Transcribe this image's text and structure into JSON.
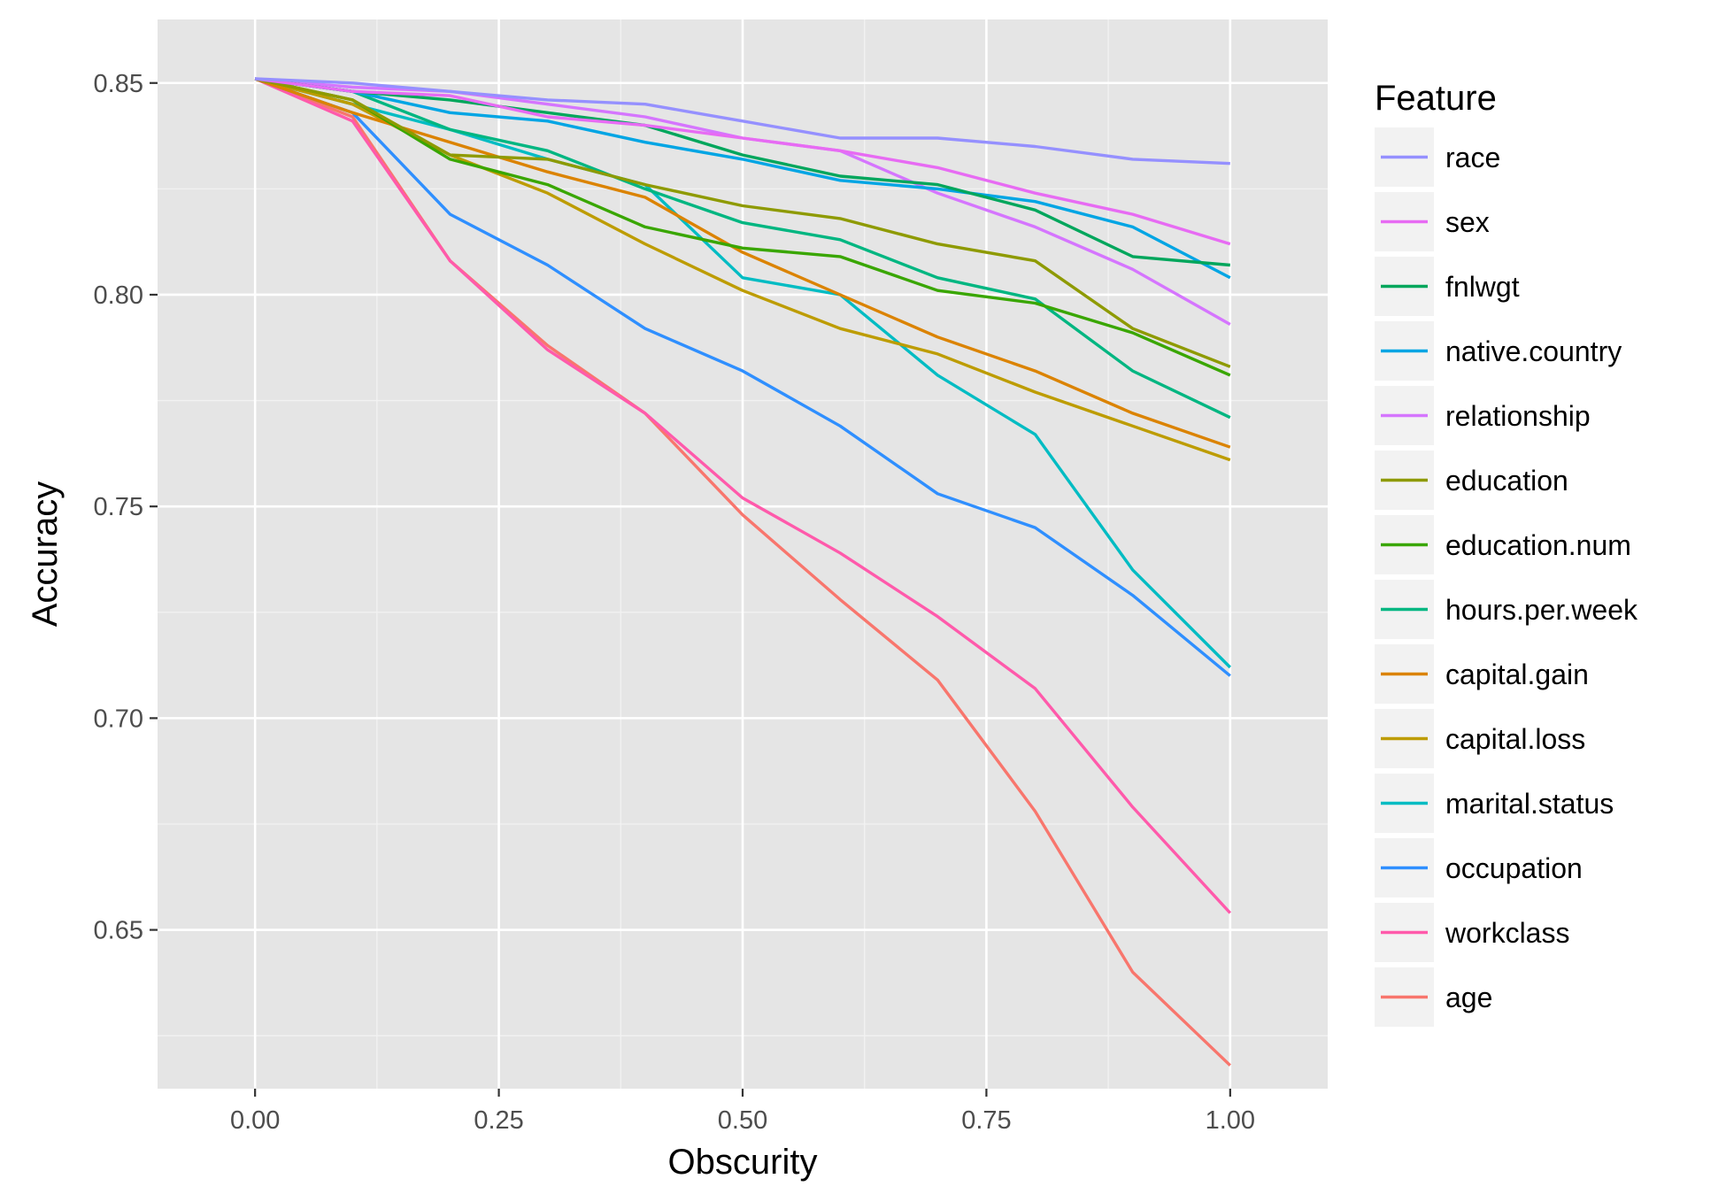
{
  "chart_data": {
    "type": "line",
    "xlabel": "Obscurity",
    "ylabel": "Accuracy",
    "xlim": [
      -0.1,
      1.1
    ],
    "ylim": [
      0.6125,
      0.865
    ],
    "x_ticks": [
      0.0,
      0.25,
      0.5,
      0.75,
      1.0
    ],
    "x_tick_labels": [
      "0.00",
      "0.25",
      "0.50",
      "0.75",
      "1.00"
    ],
    "y_ticks": [
      0.65,
      0.7,
      0.75,
      0.8,
      0.85
    ],
    "y_tick_labels": [
      "0.65",
      "0.70",
      "0.75",
      "0.80",
      "0.85"
    ],
    "grid": true,
    "legend_title": "Feature",
    "legend_position": "right",
    "x": [
      0.0,
      0.1,
      0.2,
      0.3,
      0.4,
      0.5,
      0.6,
      0.7,
      0.8,
      0.9,
      1.0
    ],
    "series": [
      {
        "name": "race",
        "color": "#9590FF",
        "values": [
          0.851,
          0.85,
          0.848,
          0.846,
          0.845,
          0.841,
          0.837,
          0.837,
          0.835,
          0.832,
          0.831
        ]
      },
      {
        "name": "sex",
        "color": "#E76BF3",
        "values": [
          0.851,
          0.848,
          0.847,
          0.842,
          0.84,
          0.837,
          0.834,
          0.83,
          0.824,
          0.819,
          0.812
        ]
      },
      {
        "name": "fnlwgt",
        "color": "#00A65C",
        "values": [
          0.851,
          0.848,
          0.846,
          0.843,
          0.84,
          0.833,
          0.828,
          0.826,
          0.82,
          0.809,
          0.807
        ]
      },
      {
        "name": "native.country",
        "color": "#00A5E4",
        "values": [
          0.851,
          0.848,
          0.843,
          0.841,
          0.836,
          0.832,
          0.827,
          0.825,
          0.822,
          0.816,
          0.804
        ]
      },
      {
        "name": "relationship",
        "color": "#D575FE",
        "values": [
          0.851,
          0.849,
          0.848,
          0.845,
          0.842,
          0.837,
          0.834,
          0.824,
          0.816,
          0.806,
          0.793
        ]
      },
      {
        "name": "education",
        "color": "#8E9A00",
        "values": [
          0.851,
          0.846,
          0.833,
          0.832,
          0.826,
          0.821,
          0.818,
          0.812,
          0.808,
          0.792,
          0.783
        ]
      },
      {
        "name": "education.num",
        "color": "#39A600",
        "values": [
          0.851,
          0.846,
          0.832,
          0.826,
          0.816,
          0.811,
          0.809,
          0.801,
          0.798,
          0.791,
          0.781
        ]
      },
      {
        "name": "hours.per.week",
        "color": "#00B681",
        "values": [
          0.851,
          0.848,
          0.839,
          0.834,
          0.825,
          0.817,
          0.813,
          0.804,
          0.799,
          0.782,
          0.771
        ]
      },
      {
        "name": "capital.gain",
        "color": "#DB8300",
        "values": [
          0.851,
          0.843,
          0.836,
          0.829,
          0.823,
          0.81,
          0.8,
          0.79,
          0.782,
          0.772,
          0.764
        ]
      },
      {
        "name": "capital.loss",
        "color": "#BD9C00",
        "values": [
          0.851,
          0.845,
          0.833,
          0.824,
          0.812,
          0.801,
          0.792,
          0.786,
          0.777,
          0.769,
          0.761
        ]
      },
      {
        "name": "marital.status",
        "color": "#00BCC3",
        "values": [
          0.851,
          0.845,
          0.839,
          0.832,
          0.826,
          0.804,
          0.8,
          0.781,
          0.767,
          0.735,
          0.712
        ]
      },
      {
        "name": "occupation",
        "color": "#2F8FFF",
        "values": [
          0.851,
          0.843,
          0.819,
          0.807,
          0.792,
          0.782,
          0.769,
          0.753,
          0.745,
          0.729,
          0.71
        ]
      },
      {
        "name": "workclass",
        "color": "#FF5AAB",
        "values": [
          0.851,
          0.841,
          0.808,
          0.787,
          0.772,
          0.752,
          0.739,
          0.724,
          0.707,
          0.679,
          0.654
        ]
      },
      {
        "name": "age",
        "color": "#F8766D",
        "values": [
          0.851,
          0.842,
          0.808,
          0.788,
          0.772,
          0.748,
          0.728,
          0.709,
          0.678,
          0.64,
          0.618
        ]
      }
    ]
  }
}
